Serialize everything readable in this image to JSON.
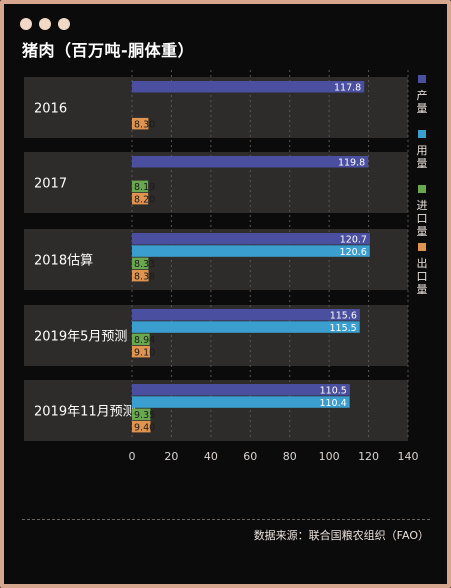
{
  "title": "猪肉（百万吨-胴体重）",
  "source": "数据来源：联合国粮农组织（FAO）",
  "colors": {
    "background": "#0c0b0b",
    "frame": "#d6a78e",
    "dots": "#f2d8c6",
    "row_band": "#2e2c2b"
  },
  "chart_data": {
    "type": "bar",
    "orientation": "horizontal",
    "title": "猪肉（百万吨-胴体重）",
    "categories": [
      "2016",
      "2017",
      "2018估算",
      "2019年5月预测",
      "2019年11月预测"
    ],
    "series": [
      {
        "name": "产量",
        "color": "#4a4fa0",
        "values": [
          117.8,
          119.8,
          120.7,
          115.6,
          110.5
        ]
      },
      {
        "name": "用量",
        "color": "#3a9fcf",
        "values": [
          null,
          null,
          120.6,
          115.5,
          110.4
        ]
      },
      {
        "name": "进口量",
        "color": "#6aa84f",
        "values": [
          null,
          8.19,
          8.33,
          8.94,
          9.35
        ]
      },
      {
        "name": "出口量",
        "color": "#e0944f",
        "values": [
          8.3,
          8.2,
          8.38,
          9.1,
          9.4
        ]
      }
    ],
    "value_labels": [
      [
        "117.8",
        null,
        null,
        "8.30"
      ],
      [
        "119.8",
        null,
        "8.19",
        "8.20"
      ],
      [
        "120.7",
        "120.6",
        "8.33",
        "8.38"
      ],
      [
        "115.6",
        "115.5",
        "8.94",
        "9.10"
      ],
      [
        "110.5",
        "110.4",
        "9.35",
        "9.40"
      ]
    ],
    "xlim": [
      0,
      140
    ],
    "xticks": [
      "0",
      "20",
      "40",
      "60",
      "80",
      "100",
      "120",
      "140"
    ],
    "grid": true,
    "legend_position": "right"
  }
}
